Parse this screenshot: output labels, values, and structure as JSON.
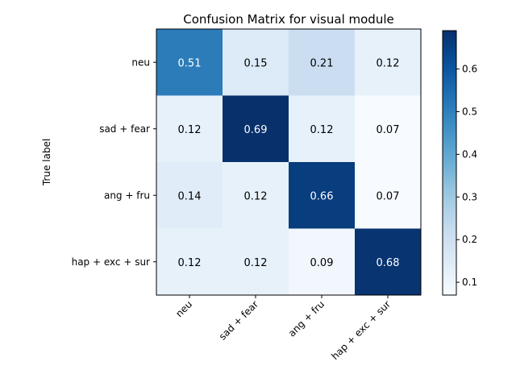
{
  "chart_data": {
    "type": "heatmap",
    "title": "Confusion Matrix for visual module",
    "ylabel": "True label",
    "xlabel": "",
    "x_categories": [
      "neu",
      "sad + fear",
      "ang + fru",
      "hap + exc + sur"
    ],
    "y_categories": [
      "neu",
      "sad + fear",
      "ang + fru",
      "hap + exc + sur"
    ],
    "values": [
      [
        0.51,
        0.15,
        0.21,
        0.12
      ],
      [
        0.12,
        0.69,
        0.12,
        0.07
      ],
      [
        0.14,
        0.12,
        0.66,
        0.07
      ],
      [
        0.12,
        0.12,
        0.09,
        0.68
      ]
    ],
    "colormap": "Blues",
    "colorbar": {
      "range": [
        0.07,
        0.69
      ],
      "ticks": [
        0.1,
        0.2,
        0.3,
        0.4,
        0.5,
        0.6
      ],
      "tick_labels": [
        "0.1",
        "0.2",
        "0.3",
        "0.4",
        "0.5",
        "0.6"
      ]
    },
    "grid": false
  }
}
